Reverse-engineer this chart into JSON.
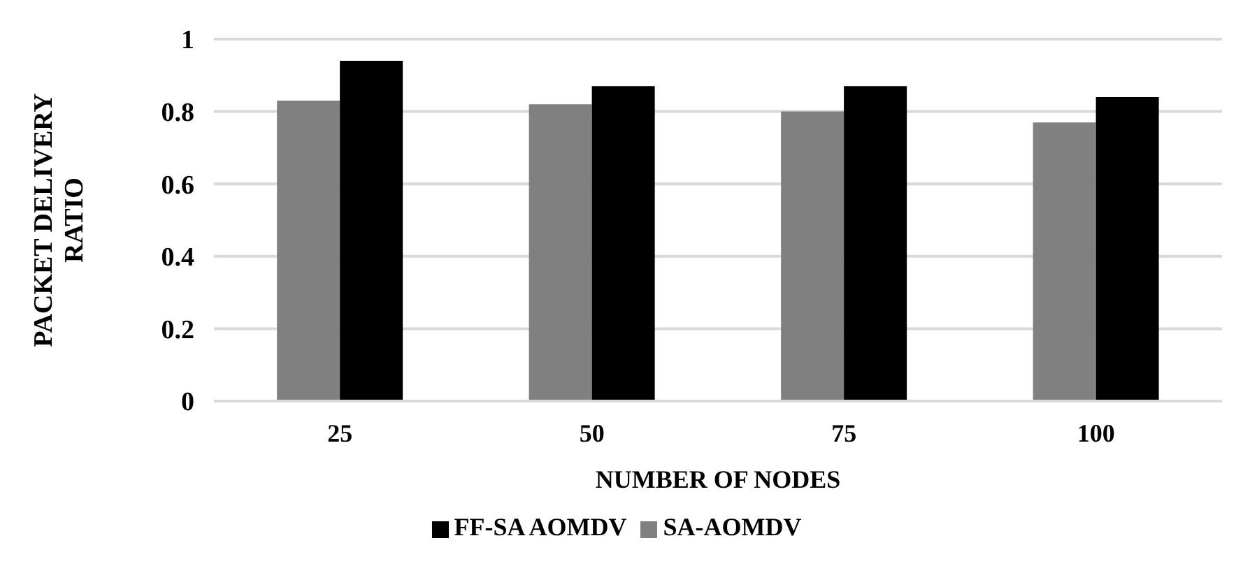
{
  "chart_data": {
    "type": "bar",
    "xlabel": "NUMBER OF NODES",
    "ylabel": "PACKET DELIVERY RATIO",
    "categories": [
      "25",
      "50",
      "75",
      "100"
    ],
    "series": [
      {
        "name": "SA-AOMDV",
        "color": "#808080",
        "values": [
          0.83,
          0.82,
          0.8,
          0.77
        ]
      },
      {
        "name": "FF-SA AOMDV",
        "color": "#000000",
        "values": [
          0.94,
          0.87,
          0.87,
          0.84
        ]
      }
    ],
    "ylim": [
      0,
      1
    ],
    "yticks": [
      0,
      0.2,
      0.4,
      0.6,
      0.8,
      1
    ],
    "grid": "y",
    "legend": "bottom"
  }
}
